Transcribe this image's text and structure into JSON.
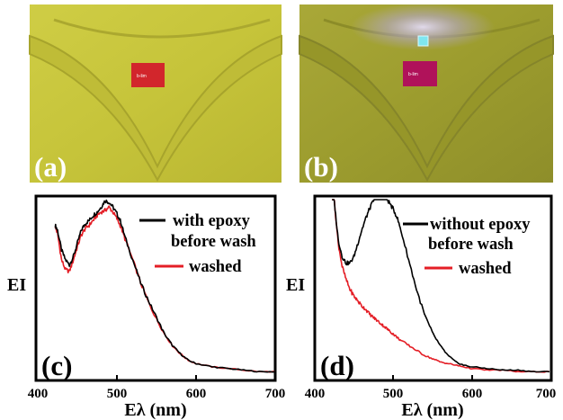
{
  "photos": [
    {
      "label": "(a)",
      "tag_text": "b-lim"
    },
    {
      "label": "(b)",
      "tag_text": "b-lim"
    }
  ],
  "colors": {
    "series1": "#000000",
    "series2": "#e41e26",
    "shirt_a": "#c9c73a",
    "shirt_b": "#9fa02e"
  },
  "chart_data": [
    {
      "type": "line",
      "panel_label": "(c)",
      "xlabel": "Eλ (nm)",
      "ylabel": "EI",
      "xlim": [
        400,
        700
      ],
      "xticks": [
        "400",
        "500",
        "600",
        "700"
      ],
      "legend_position": "top-right",
      "series": [
        {
          "name": "with epoxy before wash",
          "legend_lines": [
            "with epoxy",
            "before wash"
          ],
          "color": "#000000",
          "x": [
            422,
            425,
            430,
            435,
            440,
            445,
            450,
            455,
            460,
            465,
            470,
            475,
            480,
            485,
            490,
            495,
            500,
            505,
            510,
            520,
            530,
            540,
            550,
            560,
            570,
            580,
            590,
            600,
            620,
            640,
            660,
            680,
            700
          ],
          "y": [
            0.91,
            0.88,
            0.76,
            0.7,
            0.67,
            0.72,
            0.8,
            0.88,
            0.92,
            0.94,
            0.97,
            0.99,
            1.02,
            1.06,
            1.05,
            1.02,
            0.98,
            0.93,
            0.84,
            0.7,
            0.56,
            0.45,
            0.35,
            0.25,
            0.18,
            0.13,
            0.09,
            0.07,
            0.05,
            0.04,
            0.03,
            0.02,
            0.02
          ]
        },
        {
          "name": "washed",
          "legend_lines": [
            "washed"
          ],
          "color": "#e41e26",
          "x": [
            422,
            425,
            430,
            435,
            440,
            445,
            450,
            455,
            460,
            465,
            470,
            475,
            480,
            485,
            490,
            495,
            500,
            505,
            510,
            520,
            530,
            540,
            550,
            560,
            570,
            580,
            590,
            600,
            620,
            640,
            660,
            680,
            700
          ],
          "y": [
            0.9,
            0.86,
            0.7,
            0.64,
            0.63,
            0.7,
            0.78,
            0.85,
            0.89,
            0.91,
            0.94,
            0.97,
            0.99,
            1.0,
            1.02,
            0.99,
            0.95,
            0.9,
            0.83,
            0.7,
            0.56,
            0.44,
            0.34,
            0.25,
            0.18,
            0.13,
            0.09,
            0.07,
            0.05,
            0.04,
            0.03,
            0.02,
            0.02
          ]
        }
      ]
    },
    {
      "type": "line",
      "panel_label": "(d)",
      "xlabel": "Eλ (nm)",
      "ylabel": "EI",
      "xlim": [
        400,
        700
      ],
      "xticks": [
        "400",
        "500",
        "600",
        "700"
      ],
      "legend_position": "top-right",
      "series": [
        {
          "name": "without epoxy before wash",
          "legend_lines": [
            "without epoxy",
            "before wash"
          ],
          "color": "#000000",
          "x": [
            422,
            425,
            430,
            435,
            440,
            445,
            450,
            455,
            460,
            465,
            470,
            475,
            480,
            485,
            490,
            495,
            500,
            505,
            510,
            520,
            530,
            540,
            550,
            560,
            570,
            580,
            590,
            600,
            620,
            640,
            660,
            680,
            700
          ],
          "y": [
            1.35,
            1.05,
            0.82,
            0.72,
            0.68,
            0.68,
            0.72,
            0.8,
            0.88,
            0.95,
            1.01,
            1.06,
            1.09,
            1.1,
            1.08,
            1.05,
            1.01,
            0.96,
            0.88,
            0.7,
            0.52,
            0.37,
            0.26,
            0.18,
            0.12,
            0.08,
            0.06,
            0.05,
            0.04,
            0.03,
            0.03,
            0.02,
            0.02
          ]
        },
        {
          "name": "washed",
          "legend_lines": [
            "washed"
          ],
          "color": "#e41e26",
          "x": [
            422,
            425,
            430,
            435,
            440,
            445,
            450,
            455,
            460,
            465,
            470,
            475,
            480,
            485,
            490,
            495,
            500,
            505,
            510,
            520,
            530,
            540,
            550,
            560,
            570,
            580,
            590,
            600,
            620,
            640,
            660,
            680,
            700
          ],
          "y": [
            1.4,
            1.05,
            0.8,
            0.66,
            0.58,
            0.52,
            0.48,
            0.45,
            0.42,
            0.4,
            0.37,
            0.35,
            0.33,
            0.31,
            0.29,
            0.27,
            0.25,
            0.23,
            0.21,
            0.18,
            0.15,
            0.12,
            0.1,
            0.08,
            0.07,
            0.06,
            0.05,
            0.04,
            0.03,
            0.03,
            0.02,
            0.02,
            0.02
          ]
        }
      ]
    }
  ]
}
